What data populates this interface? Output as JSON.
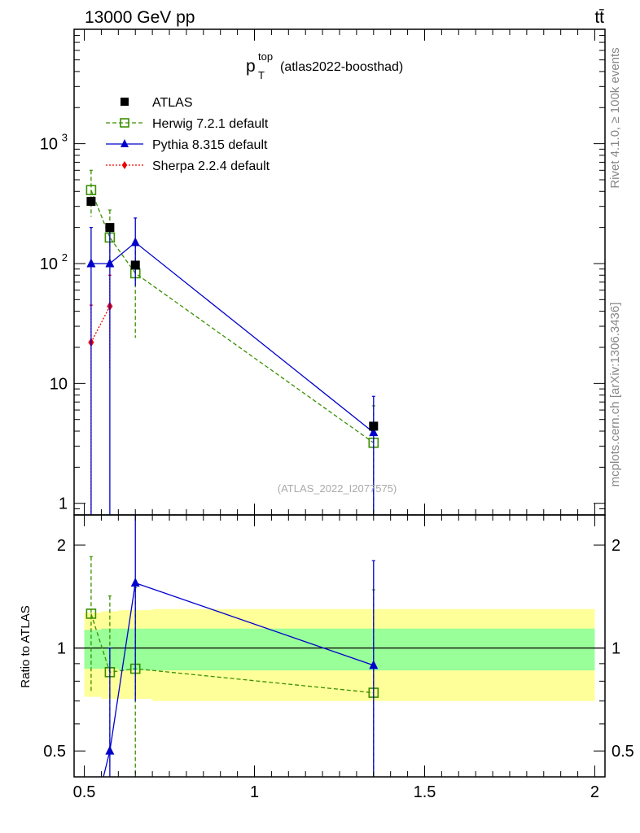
{
  "header": {
    "energy_label": "13000 GeV pp",
    "process_label": "tt̄"
  },
  "side_labels": {
    "rivet": "Rivet 4.1.0, ≥ 100k events",
    "mcplots": "mcplots.cern.ch [arXiv:1306.3436]"
  },
  "plot": {
    "title_main": "p",
    "title_sup": "top",
    "title_sub": "T",
    "title_rest": "(atlas2022-boosthad)",
    "watermark": "(ATLAS_2022_I2077575)"
  },
  "legend": [
    {
      "name": "ATLAS",
      "color": "#000000",
      "marker": "square-filled",
      "line": "none"
    },
    {
      "name": "Herwig 7.2.1 default",
      "color": "#3a8f00",
      "marker": "square-open",
      "line": "dashed"
    },
    {
      "name": "Pythia 8.315 default",
      "color": "#0000cc",
      "marker": "triangle",
      "line": "solid"
    },
    {
      "name": "Sherpa 2.2.4 default",
      "color": "#ee0000",
      "marker": "diamond",
      "line": "dotted"
    }
  ],
  "chart_data": [
    {
      "type": "line",
      "panel": "main",
      "yscale": "log",
      "xlim": [
        0.47,
        2.03
      ],
      "ylim": [
        0.8,
        9000
      ],
      "ytick_labels": [
        {
          "value": 1,
          "label": "1"
        },
        {
          "value": 10,
          "label": "10"
        },
        {
          "value": 100,
          "label": "10",
          "exp": "2"
        },
        {
          "value": 1000,
          "label": "10",
          "exp": "3"
        }
      ],
      "series": [
        {
          "name": "ATLAS",
          "color": "#000000",
          "points": [
            {
              "x": 0.52,
              "y": 330,
              "lo": null,
              "hi": null
            },
            {
              "x": 0.575,
              "y": 200,
              "lo": null,
              "hi": null
            },
            {
              "x": 0.65,
              "y": 97,
              "lo": null,
              "hi": null
            },
            {
              "x": 1.35,
              "y": 4.4,
              "lo": null,
              "hi": null
            }
          ]
        },
        {
          "name": "Herwig 7.2.1 default",
          "color": "#3a8f00",
          "points": [
            {
              "x": 0.52,
              "y": 410,
              "lo": 245,
              "hi": 600
            },
            {
              "x": 0.575,
              "y": 165,
              "lo": 90,
              "hi": 280
            },
            {
              "x": 0.65,
              "y": 83,
              "lo": 24,
              "hi": 145
            },
            {
              "x": 1.35,
              "y": 3.2,
              "lo": 0.5,
              "hi": 6.5
            }
          ]
        },
        {
          "name": "Pythia 8.315 default",
          "color": "#0000cc",
          "points": [
            {
              "x": 0.52,
              "y": 100,
              "lo": 0.5,
              "hi": 200
            },
            {
              "x": 0.575,
              "y": 100,
              "lo": 0.5,
              "hi": 200
            },
            {
              "x": 0.65,
              "y": 150,
              "lo": 65,
              "hi": 240
            },
            {
              "x": 1.35,
              "y": 3.9,
              "lo": 0.5,
              "hi": 7.8
            }
          ]
        },
        {
          "name": "Sherpa 2.2.4 default",
          "color": "#ee0000",
          "points": [
            {
              "x": 0.52,
              "y": 22,
              "lo": 0.5,
              "hi": 45
            },
            {
              "x": 0.575,
              "y": 44,
              "lo": 13,
              "hi": 80
            }
          ]
        }
      ]
    },
    {
      "type": "line",
      "panel": "ratio",
      "yscale": "log",
      "ylabel": "Ratio to ATLAS",
      "xlim": [
        0.47,
        2.03
      ],
      "ylim": [
        0.42,
        2.45
      ],
      "xtick_labels": [
        {
          "value": 0.5,
          "label": "0.5"
        },
        {
          "value": 1,
          "label": "1"
        },
        {
          "value": 1.5,
          "label": "1.5"
        },
        {
          "value": 2,
          "label": "2"
        }
      ],
      "ytick_labels": [
        {
          "value": 0.5,
          "label": "0.5"
        },
        {
          "value": 1,
          "label": "1"
        },
        {
          "value": 2,
          "label": "2"
        }
      ],
      "bands": [
        {
          "name": "total uncertainty",
          "color": "#ffff99",
          "segments": [
            {
              "x0": 0.5,
              "x1": 0.55,
              "lo": 0.72,
              "hi": 1.27
            },
            {
              "x0": 0.55,
              "x1": 0.6,
              "lo": 0.71,
              "hi": 1.28
            },
            {
              "x0": 0.6,
              "x1": 0.7,
              "lo": 0.71,
              "hi": 1.29
            },
            {
              "x0": 0.7,
              "x1": 2.0,
              "lo": 0.7,
              "hi": 1.3
            }
          ]
        },
        {
          "name": "statistical uncertainty",
          "color": "#99ff99",
          "segments": [
            {
              "x0": 0.5,
              "x1": 0.55,
              "lo": 0.87,
              "hi": 1.13
            },
            {
              "x0": 0.55,
              "x1": 0.6,
              "lo": 0.87,
              "hi": 1.14
            },
            {
              "x0": 0.6,
              "x1": 2.0,
              "lo": 0.86,
              "hi": 1.14
            }
          ]
        }
      ],
      "series": [
        {
          "name": "Herwig 7.2.1 default",
          "color": "#3a8f00",
          "points": [
            {
              "x": 0.52,
              "y": 1.26,
              "lo": 0.74,
              "hi": 1.85
            },
            {
              "x": 0.575,
              "y": 0.85,
              "lo": 0.45,
              "hi": 1.42
            },
            {
              "x": 0.65,
              "y": 0.87,
              "lo": 0.3,
              "hi": 1.5
            },
            {
              "x": 1.35,
              "y": 0.74,
              "lo": 0.3,
              "hi": 1.48
            }
          ]
        },
        {
          "name": "Pythia 8.315 default",
          "color": "#0000cc",
          "points": [
            {
              "x": 0.52,
              "y": 0.3,
              "lo": null,
              "hi": null
            },
            {
              "x": 0.575,
              "y": 0.5,
              "lo": 0.3,
              "hi": 1.0
            },
            {
              "x": 0.65,
              "y": 1.55,
              "lo": 0.7,
              "hi": 2.5
            },
            {
              "x": 1.35,
              "y": 0.89,
              "lo": 0.3,
              "hi": 1.8
            }
          ]
        }
      ]
    }
  ]
}
